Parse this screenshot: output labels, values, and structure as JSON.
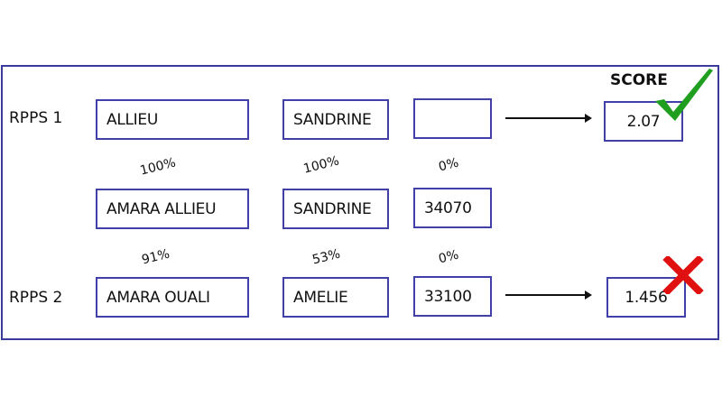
{
  "score_label": "SCORE",
  "rows": [
    {
      "label": "RPPS 1",
      "fields": [
        "ALLIEU",
        "SANDRINE",
        ""
      ],
      "score": "2.07",
      "result": "check"
    },
    {
      "label": "",
      "fields": [
        "AMARA ALLIEU",
        "SANDRINE",
        "34070"
      ]
    },
    {
      "label": "RPPS 2",
      "fields": [
        "AMARA OUALI",
        "AMELIE",
        "33100"
      ],
      "score": "1.456",
      "result": "cross"
    }
  ],
  "similarities": [
    [
      "100%",
      "100%",
      "0%"
    ],
    [
      "91%",
      "53%",
      "0%"
    ]
  ],
  "colors": {
    "border": "#3b3b9e",
    "check": "#1f9e1f",
    "cross": "#e01010"
  },
  "icons": [
    "check-icon",
    "cross-icon",
    "arrow-right-icon"
  ]
}
